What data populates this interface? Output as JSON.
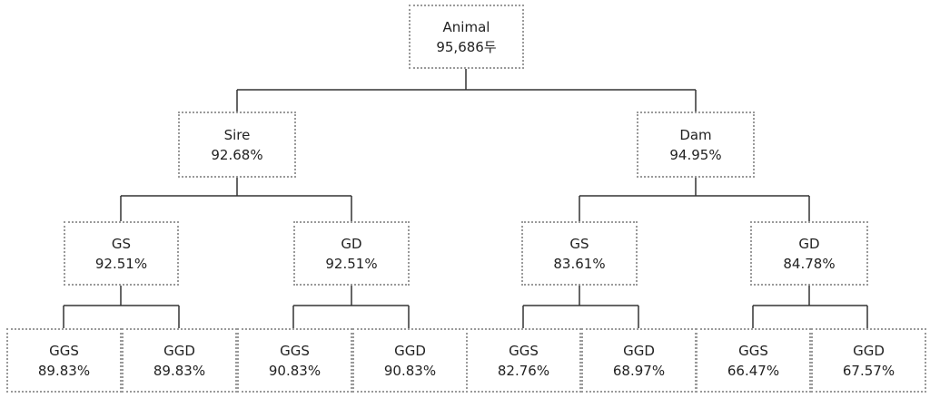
{
  "tree": {
    "root": {
      "label": "Animal",
      "value": "95,686두"
    },
    "level1": [
      {
        "label": "Sire",
        "value": "92.68%"
      },
      {
        "label": "Dam",
        "value": "94.95%"
      }
    ],
    "level2": [
      {
        "label": "GS",
        "value": "92.51%"
      },
      {
        "label": "GD",
        "value": "92.51%"
      },
      {
        "label": "GS",
        "value": "83.61%"
      },
      {
        "label": "GD",
        "value": "84.78%"
      }
    ],
    "level3": [
      {
        "label": "GGS",
        "value": "89.83%"
      },
      {
        "label": "GGD",
        "value": "89.83%"
      },
      {
        "label": "GGS",
        "value": "90.83%"
      },
      {
        "label": "GGD",
        "value": "90.83%"
      },
      {
        "label": "GGS",
        "value": "82.76%"
      },
      {
        "label": "GGD",
        "value": "68.97%"
      },
      {
        "label": "GGS",
        "value": "66.47%"
      },
      {
        "label": "GGD",
        "value": "67.57%"
      }
    ]
  }
}
